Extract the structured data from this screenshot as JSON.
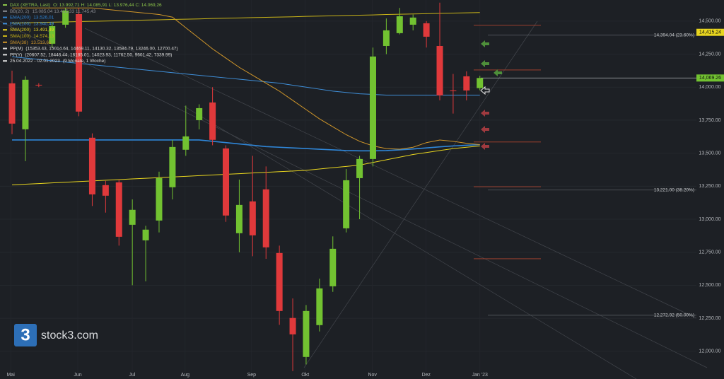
{
  "chart_data": {
    "type": "candlestick",
    "title": "DAX (XETRA, Last)",
    "ohlc_label": "O: 13.992,71  H: 14.085,91  L: 13.976,44  C: 14.069,26",
    "title_color": "#8bc34a",
    "up_color": "#72c231",
    "down_color": "#e0393b",
    "open": [
      14029,
      13681,
      14018,
      14329,
      14473,
      14553,
      13617,
      13258,
      13279,
      12958,
      12840,
      12990,
      13242,
      13526,
      13750,
      13884,
      13536,
      12894,
      13135,
      13226,
      12744,
      12252,
      11957,
      12198,
      12492,
      12931,
      13311,
      13456,
      14312,
      14409,
      14473,
      14484,
      14312,
      13975,
      14082,
      13992.71
    ],
    "high": [
      14125,
      14082,
      14030,
      14490,
      14600,
      14600,
      13650,
      13290,
      13300,
      13150,
      12950,
      13360,
      13600,
      13860,
      13870,
      14000,
      13560,
      13300,
      13480,
      13400,
      12800,
      12400,
      12350,
      12550,
      12870,
      13380,
      13480,
      14300,
      14520,
      14600,
      14550,
      14500,
      14640,
      14100,
      14120,
      14085.91
    ],
    "low": [
      13644,
      13440,
      14000,
      14300,
      14450,
      13780,
      13100,
      13050,
      12800,
      12500,
      12530,
      12900,
      13150,
      13480,
      13680,
      13560,
      12980,
      12750,
      12720,
      12700,
      12200,
      11850,
      11900,
      12150,
      12450,
      12900,
      13000,
      13400,
      14250,
      14400,
      14430,
      14300,
      13900,
      13800,
      13900,
      13976.44
    ],
    "close": [
      13724,
      14056,
      14018,
      14462,
      14580,
      13815,
      13188,
      13178,
      12867,
      13071,
      12921,
      13311,
      13547,
      13627,
      13841,
      13601,
      13028,
      13108,
      12878,
      12787,
      12305,
      12128,
      12305,
      12476,
      12776,
      13295,
      13456,
      14232,
      14430,
      14537,
      14527,
      14382,
      13938,
      13975,
      13975,
      14069.26
    ],
    "legend": [
      {
        "name": "BB(20, 2)",
        "label": "15.085,04  13.415,33  11.745,43",
        "color": "#8a8d93"
      },
      {
        "name": "EMA(200)",
        "label": "13.526,01",
        "color": "#2f86d8",
        "values": [
          13600,
          13600,
          13600,
          13600,
          13600,
          13600,
          13600,
          13600,
          13600,
          13600,
          13600,
          13600,
          13600,
          13600,
          13600,
          13590,
          13580,
          13570,
          13560,
          13550,
          13545,
          13540,
          13535,
          13530,
          13525,
          13520,
          13518,
          13518,
          13520,
          13525,
          13532,
          13540,
          13548,
          13555,
          13560,
          13565
        ]
      },
      {
        "name": "EMA(100)",
        "label": "13.940,49",
        "color": "#3f8fd9",
        "values": [
          14230,
          14220,
          14210,
          14200,
          14190,
          14180,
          14170,
          14160,
          14150,
          14140,
          14130,
          14120,
          14110,
          14100,
          14090,
          14080,
          14070,
          14060,
          14050,
          14040,
          14030,
          14015,
          14000,
          13985,
          13970,
          13960,
          13950,
          13945,
          13940,
          13940,
          13940,
          13940,
          13940,
          13940,
          13940,
          13940
        ]
      },
      {
        "name": "SMA(200)",
        "label": "13.491,49",
        "color": "#e8d51f",
        "values": [
          13260,
          13265,
          13270,
          13275,
          13280,
          13285,
          13290,
          13295,
          13300,
          13305,
          13310,
          13315,
          13320,
          13325,
          13330,
          13335,
          13340,
          13345,
          13350,
          13355,
          13360,
          13365,
          13370,
          13380,
          13390,
          13400,
          13410,
          13430,
          13450,
          13470,
          13490,
          13505,
          13520,
          13535,
          13545,
          13555
        ]
      },
      {
        "name": "SMA(100)",
        "label": "14.574,13",
        "color": "#c9b418",
        "values": [
          14485,
          14487,
          14490,
          14492,
          14494,
          14497,
          14499,
          14501,
          14503,
          14506,
          14508,
          14510,
          14513,
          14515,
          14517,
          14520,
          14522,
          14524,
          14527,
          14529,
          14531,
          14533,
          14536,
          14538,
          14540,
          14543,
          14545,
          14547,
          14550,
          14552,
          14554,
          14556,
          14559,
          14561,
          14563,
          14565
        ]
      },
      {
        "name": "SMA(38)",
        "label": "13.513,61",
        "color": "#d0962a",
        "values": [
          14600,
          14600,
          14600,
          14600,
          14600,
          14600,
          14600,
          14590,
          14580,
          14570,
          14560,
          14550,
          14530,
          14450,
          14370,
          14290,
          14220,
          14150,
          14090,
          14030,
          13970,
          13900,
          13830,
          13760,
          13700,
          13640,
          13590,
          13555,
          13535,
          13530,
          13545,
          13580,
          13600,
          13590,
          13575,
          13565
        ]
      },
      {
        "name": "PP(M)",
        "label": "(15353.43, 15014.64, 14469.11, 14130.32, 13584.79, 13246.00, 12700.47)",
        "color": "#dddddd",
        "levels": [
          14469.11,
          14130.32,
          13584.79,
          13246.0,
          12700.47
        ],
        "level_color": "#b0432f"
      },
      {
        "name": "PP(Y)",
        "label": "(20607.52, 18446.44, 16185.01, 14023.93, 11762.50, 9601.42, 7339.99)",
        "color": "#dddddd"
      },
      {
        "name": "25.04.2022 - 02.01.2023",
        "label": "(9 Monate, 1 Woche)",
        "color": "#dddddd"
      }
    ],
    "fib_levels": [
      {
        "value": 14394.04,
        "label": "14,394.04 (23.60%)"
      },
      {
        "value": 13221.0,
        "label": "13,221.00 (38.20%)"
      },
      {
        "value": 12272.92,
        "label": "12,272.92 (50.00%)"
      }
    ],
    "price_tags": [
      {
        "value": 14415.24,
        "label": "14,415.24",
        "color": "#e8d51f"
      },
      {
        "value": 14069.26,
        "label": "14,069.26",
        "color": "#72c231",
        "line": true
      }
    ],
    "ylim": [
      11790,
      14660
    ],
    "yticks": [
      {
        "value": 12000,
        "label": "12,000.00"
      },
      {
        "value": 12250,
        "label": "12,250.00"
      },
      {
        "value": 12500,
        "label": "12,500.00"
      },
      {
        "value": 12750,
        "label": "12,750.00"
      },
      {
        "value": 13000,
        "label": "13,000.00"
      },
      {
        "value": 13250,
        "label": "13,250.00"
      },
      {
        "value": 13500,
        "label": "13,500.00"
      },
      {
        "value": 13750,
        "label": "13,750.00"
      },
      {
        "value": 14000,
        "label": "14,000.00"
      },
      {
        "value": 14250,
        "label": "14,250.00"
      },
      {
        "value": 14500,
        "label": "14,500.00"
      }
    ],
    "xlim": [
      -0.9,
      51.2
    ],
    "xticks": [
      {
        "value": -0.1,
        "label": "Mai"
      },
      {
        "value": 4.92,
        "label": "Jun"
      },
      {
        "value": 8.99,
        "label": "Jul"
      },
      {
        "value": 12.95,
        "label": "Aug"
      },
      {
        "value": 17.92,
        "label": "Sep"
      },
      {
        "value": 21.94,
        "label": "Okt"
      },
      {
        "value": 26.96,
        "label": "Nov"
      },
      {
        "value": 30.98,
        "label": "Dez"
      },
      {
        "value": 35,
        "label": "Jan '23"
      }
    ],
    "grid": true,
    "watermark": "stock3.com",
    "logo_glyph": "3"
  }
}
